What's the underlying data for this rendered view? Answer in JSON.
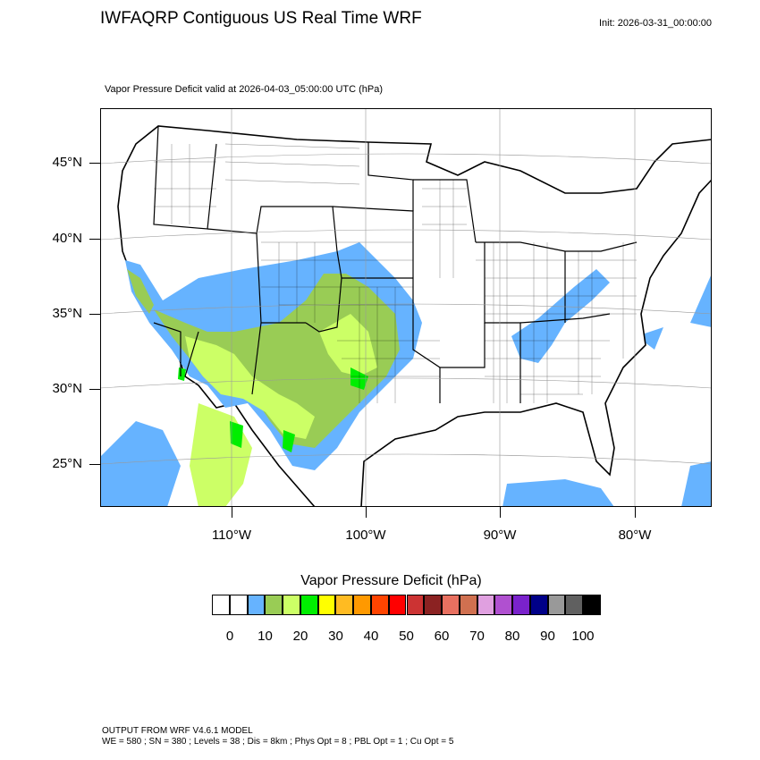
{
  "header": {
    "title": "IWFAQRP Contiguous US Real Time WRF",
    "init": "Init: 2026-03-31_00:00:00",
    "subtitle": "Vapor Pressure Deficit valid at 2026-04-03_05:00:00 UTC   (hPa)"
  },
  "map": {
    "lat_labels": [
      "45°N",
      "40°N",
      "35°N",
      "30°N",
      "25°N"
    ],
    "lon_labels": [
      "110°W",
      "100°W",
      "90°W",
      "80°W"
    ],
    "field": "Vapor Pressure Deficit",
    "units": "hPa"
  },
  "colorbar": {
    "title": "Vapor Pressure Deficit  (hPa)",
    "colors": [
      "#ffffff",
      "#ffffff",
      "#66b3ff",
      "#99cc55",
      "#ccff66",
      "#00ee00",
      "#ffff00",
      "#ffbb22",
      "#ff9900",
      "#ff4400",
      "#ff0000",
      "#cc3333",
      "#8b2222",
      "#e87060",
      "#d07050",
      "#e0a0e0",
      "#b050d0",
      "#7a22cc",
      "#000088",
      "#999999",
      "#606060",
      "#000000"
    ],
    "labels": [
      "0",
      "10",
      "20",
      "30",
      "40",
      "50",
      "60",
      "70",
      "80",
      "90",
      "100"
    ]
  },
  "footer": {
    "line1": "OUTPUT FROM WRF V4.6.1 MODEL",
    "line2": "WE = 580 ; SN = 380 ; Levels = 38 ; Dis = 8km ; Phys Opt = 8 ; PBL Opt = 1 ; Cu Opt = 5"
  }
}
